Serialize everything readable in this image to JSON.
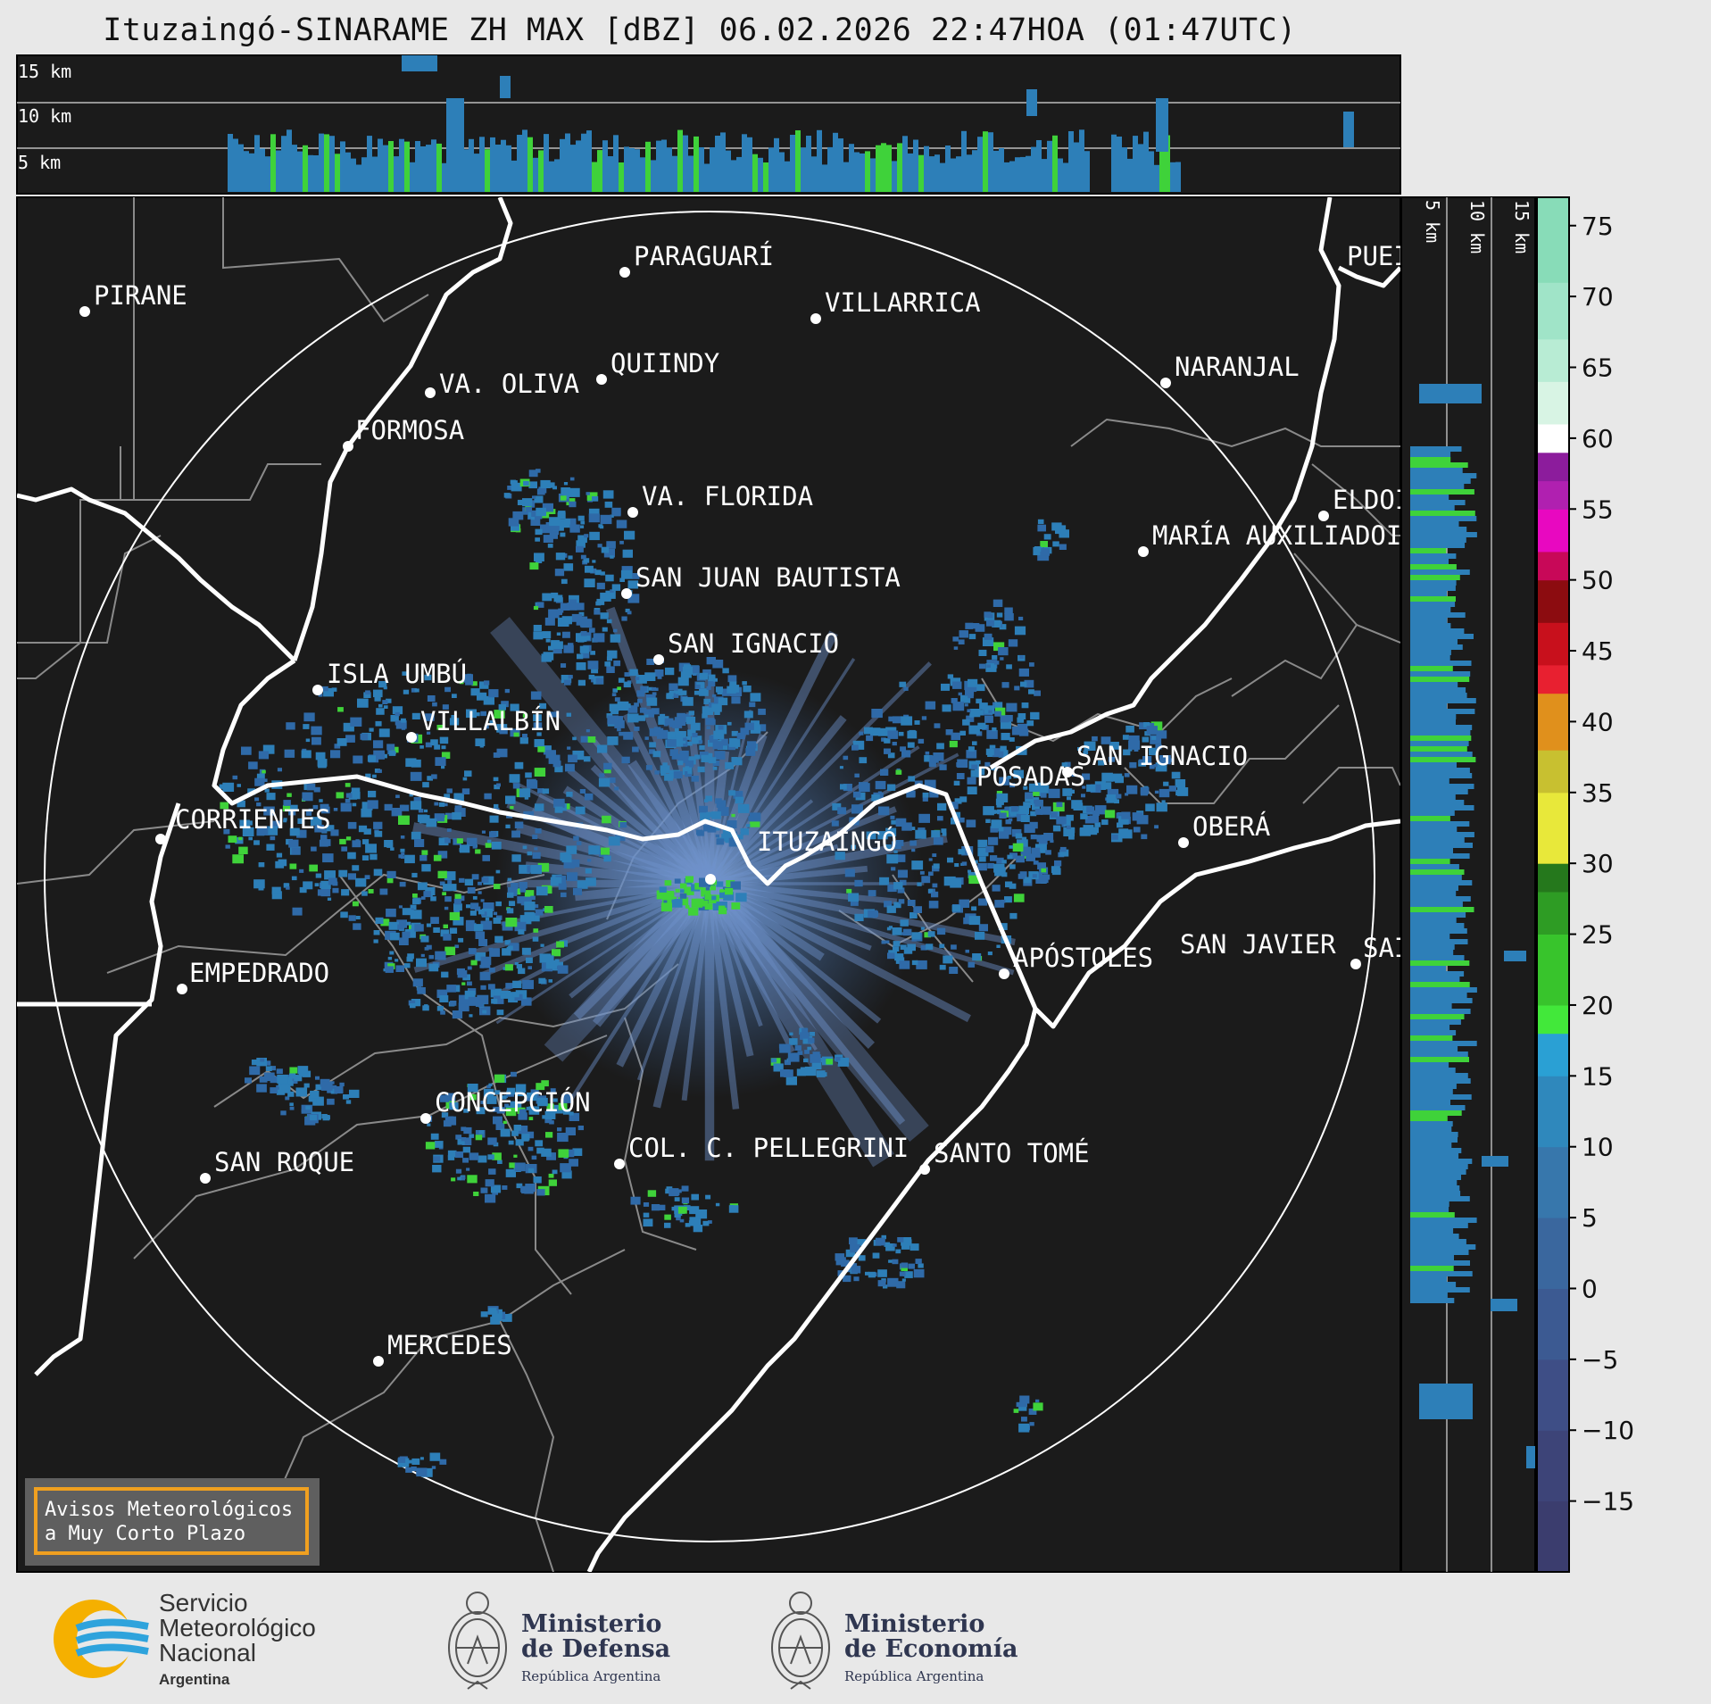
{
  "title": "Ituzaingó-SINARAME ZH MAX [dBZ] 06.02.2026 22:47HOA (01:47UTC)",
  "top_panel": {
    "height_labels": [
      "15 km",
      "10 km",
      "5 km"
    ]
  },
  "side_panel": {
    "height_labels": [
      "5 km",
      "10 km",
      "15 km"
    ]
  },
  "radar_site": "ITUZAINGÓ",
  "cities": [
    {
      "name": "PIRANE"
    },
    {
      "name": "PARAGUARÍ"
    },
    {
      "name": "VILLARRICA"
    },
    {
      "name": "QUIINDY"
    },
    {
      "name": "VA. OLIVA"
    },
    {
      "name": "FORMOSA"
    },
    {
      "name": "NARANJAL"
    },
    {
      "name": "PUEI"
    },
    {
      "name": "VA. FLORIDA"
    },
    {
      "name": "ELDOI"
    },
    {
      "name": "MARÍA AUXILIADOI"
    },
    {
      "name": "SAN JUAN BAUTISTA"
    },
    {
      "name": "SAN IGNACIO"
    },
    {
      "name": "ISLA UMBÚ"
    },
    {
      "name": "VILLALBÍN"
    },
    {
      "name": "SAN IGNACIO"
    },
    {
      "name": "POSADAS"
    },
    {
      "name": "CORRIENTES"
    },
    {
      "name": "OBERÁ"
    },
    {
      "name": "ITUZAINGÓ"
    },
    {
      "name": "EMPEDRADO"
    },
    {
      "name": "APÓSTOLES"
    },
    {
      "name": "SAN JAVIER"
    },
    {
      "name": "SAI"
    },
    {
      "name": "CONCEPCIÓN"
    },
    {
      "name": "COL. C. PELLEGRINI"
    },
    {
      "name": "SANTO TOMÉ"
    },
    {
      "name": "SAN ROQUE"
    },
    {
      "name": "MERCEDES"
    }
  ],
  "warning_box": {
    "line1": "Avisos Meteorológicos",
    "line2": "a Muy Corto Plazo",
    "border_color": "#f0a020"
  },
  "colorbar": {
    "unit": "dBZ",
    "ticks": [
      "75",
      "70",
      "65",
      "60",
      "55",
      "50",
      "45",
      "40",
      "35",
      "30",
      "25",
      "20",
      "15",
      "10",
      "5",
      "0",
      "−5",
      "−10",
      "−15"
    ],
    "min": -20,
    "max": 77,
    "bands": [
      {
        "from": -20,
        "to": -15,
        "color": "#3b3d6e"
      },
      {
        "from": -15,
        "to": -10,
        "color": "#3d4478"
      },
      {
        "from": -10,
        "to": -5,
        "color": "#3e4e86"
      },
      {
        "from": -5,
        "to": 0,
        "color": "#3c5a92"
      },
      {
        "from": 0,
        "to": 5,
        "color": "#3a679e"
      },
      {
        "from": 5,
        "to": 10,
        "color": "#3777ac"
      },
      {
        "from": 10,
        "to": 15,
        "color": "#2f88bc"
      },
      {
        "from": 15,
        "to": 18,
        "color": "#2aa0d4"
      },
      {
        "from": 18,
        "to": 20,
        "color": "#42e83a"
      },
      {
        "from": 20,
        "to": 25,
        "color": "#38c42c"
      },
      {
        "from": 25,
        "to": 28,
        "color": "#2e9c24"
      },
      {
        "from": 28,
        "to": 30,
        "color": "#25781c"
      },
      {
        "from": 30,
        "to": 35,
        "color": "#e8e83a"
      },
      {
        "from": 35,
        "to": 38,
        "color": "#c8c030"
      },
      {
        "from": 38,
        "to": 42,
        "color": "#e0901c"
      },
      {
        "from": 42,
        "to": 44,
        "color": "#e82030"
      },
      {
        "from": 44,
        "to": 47,
        "color": "#c8101c"
      },
      {
        "from": 47,
        "to": 50,
        "color": "#8c0c10"
      },
      {
        "from": 50,
        "to": 52,
        "color": "#c80858"
      },
      {
        "from": 52,
        "to": 55,
        "color": "#e808c0"
      },
      {
        "from": 55,
        "to": 57,
        "color": "#b020b0"
      },
      {
        "from": 57,
        "to": 59,
        "color": "#8c1c9c"
      },
      {
        "from": 59,
        "to": 61,
        "color": "#ffffff"
      },
      {
        "from": 61,
        "to": 64,
        "color": "#d8f4e4"
      },
      {
        "from": 64,
        "to": 67,
        "color": "#b8ecd4"
      },
      {
        "from": 67,
        "to": 71,
        "color": "#a0e4c8"
      },
      {
        "from": 71,
        "to": 77,
        "color": "#88dcb8"
      }
    ]
  },
  "logos": {
    "smn": {
      "line1": "Servicio",
      "line2": "Meteorológico",
      "line3": "Nacional",
      "line4": "Argentina"
    },
    "defensa": {
      "line1": "Ministerio",
      "line2": "de Defensa",
      "line3": "República Argentina"
    },
    "economia": {
      "line1": "Ministerio",
      "line2": "de Economía",
      "line3": "República Argentina"
    }
  },
  "colors": {
    "map_background": "#1b1b1b",
    "page_background": "#e8e8e8",
    "border_lines": "#ffffff",
    "province_lines": "#8a8a8a",
    "echo_base": "#2d7fb8",
    "echo_strong": "#3fd23a"
  }
}
